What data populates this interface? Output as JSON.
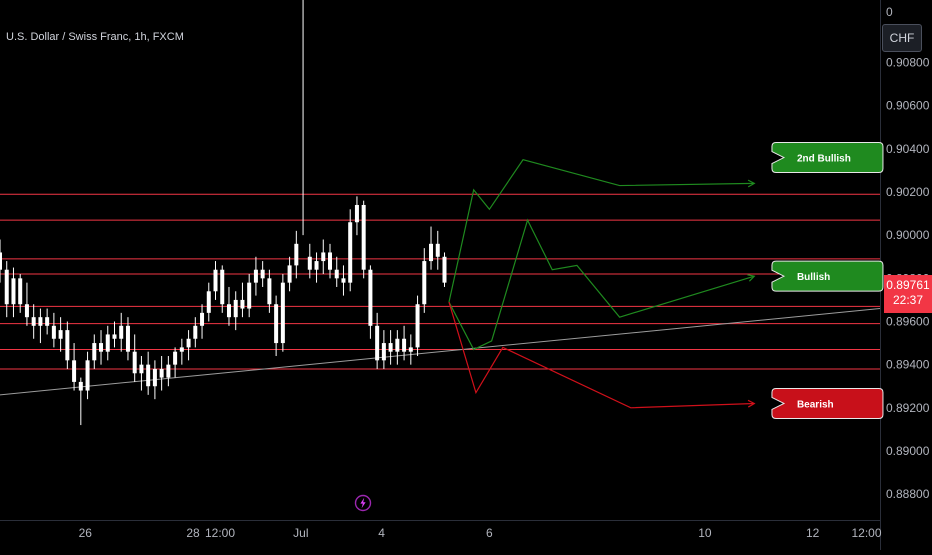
{
  "header": {
    "symbol_title": "U.S. Dollar / Swiss Franc, 1h, FXCM",
    "currency": "CHF"
  },
  "price_axis": {
    "top_label": "0",
    "current_price": "0.89761",
    "countdown": "22:37"
  },
  "icons": {
    "flash": "lightning-icon"
  },
  "colors": {
    "background": "#000000",
    "candle": "#ffffff",
    "level_line": "#f23645",
    "bullish": "#1f8a1f",
    "bearish": "#d0101a",
    "trendline": "#9c9c9c"
  },
  "chart_data": {
    "type": "candlestick",
    "title": "U.S. Dollar / Swiss Franc, 1h, FXCM",
    "y_axis": {
      "position": "right",
      "ticks": [
        0.888,
        0.89,
        0.892,
        0.894,
        0.896,
        0.898,
        0.9,
        0.902,
        0.904,
        0.906,
        0.908
      ],
      "tick_labels": [
        "0.88800",
        "0.89000",
        "0.89200",
        "0.89400",
        "0.89600",
        "0.89800",
        "0.90000",
        "0.90200",
        "0.90400",
        "0.90600",
        "0.90800"
      ],
      "range": [
        0.8868,
        0.9109
      ]
    },
    "x_axis": {
      "tick_labels": [
        "26",
        "28",
        "12:00",
        "Jul",
        "4",
        "6",
        "10",
        "12",
        "12:00"
      ],
      "tick_times": [
        0,
        48,
        60,
        96,
        132,
        180,
        276,
        324,
        348
      ],
      "range": [
        -38,
        354
      ]
    },
    "grid": false,
    "current_price": 0.89761,
    "horizontal_levels": [
      0.9019,
      0.9007,
      0.8989,
      0.8982,
      0.8967,
      0.8959,
      0.8947,
      0.8938
    ],
    "trendline": {
      "start": [
        -38,
        0.8926
      ],
      "end": [
        354,
        0.8966
      ]
    },
    "candles": [
      {
        "t": -38,
        "o": 0.8992,
        "h": 0.8998,
        "l": 0.8978,
        "c": 0.8984
      },
      {
        "t": -35,
        "o": 0.8984,
        "h": 0.8988,
        "l": 0.8962,
        "c": 0.8968
      },
      {
        "t": -32,
        "o": 0.8968,
        "h": 0.8985,
        "l": 0.8962,
        "c": 0.898
      },
      {
        "t": -29,
        "o": 0.898,
        "h": 0.8982,
        "l": 0.8964,
        "c": 0.8968
      },
      {
        "t": -26,
        "o": 0.8968,
        "h": 0.8978,
        "l": 0.8958,
        "c": 0.8962
      },
      {
        "t": -23,
        "o": 0.8962,
        "h": 0.8968,
        "l": 0.8952,
        "c": 0.8958
      },
      {
        "t": -20,
        "o": 0.8958,
        "h": 0.8966,
        "l": 0.895,
        "c": 0.8962
      },
      {
        "t": -17,
        "o": 0.8962,
        "h": 0.8966,
        "l": 0.8954,
        "c": 0.8958
      },
      {
        "t": -14,
        "o": 0.8958,
        "h": 0.8964,
        "l": 0.8948,
        "c": 0.8952
      },
      {
        "t": -11,
        "o": 0.8952,
        "h": 0.8962,
        "l": 0.8946,
        "c": 0.8956
      },
      {
        "t": -8,
        "o": 0.8956,
        "h": 0.896,
        "l": 0.8938,
        "c": 0.8942
      },
      {
        "t": -5,
        "o": 0.8942,
        "h": 0.895,
        "l": 0.8928,
        "c": 0.8932
      },
      {
        "t": -2,
        "o": 0.8932,
        "h": 0.8934,
        "l": 0.8912,
        "c": 0.8928
      },
      {
        "t": 1,
        "o": 0.8928,
        "h": 0.8946,
        "l": 0.8924,
        "c": 0.8942
      },
      {
        "t": 4,
        "o": 0.8942,
        "h": 0.8954,
        "l": 0.8938,
        "c": 0.895
      },
      {
        "t": 7,
        "o": 0.895,
        "h": 0.8956,
        "l": 0.894,
        "c": 0.8946
      },
      {
        "t": 10,
        "o": 0.8946,
        "h": 0.8958,
        "l": 0.8942,
        "c": 0.8954
      },
      {
        "t": 13,
        "o": 0.8954,
        "h": 0.896,
        "l": 0.8948,
        "c": 0.8952
      },
      {
        "t": 16,
        "o": 0.8952,
        "h": 0.8964,
        "l": 0.8946,
        "c": 0.8958
      },
      {
        "t": 19,
        "o": 0.8958,
        "h": 0.8962,
        "l": 0.8942,
        "c": 0.8946
      },
      {
        "t": 22,
        "o": 0.8946,
        "h": 0.8954,
        "l": 0.8932,
        "c": 0.8936
      },
      {
        "t": 25,
        "o": 0.8936,
        "h": 0.8944,
        "l": 0.8928,
        "c": 0.894
      },
      {
        "t": 28,
        "o": 0.894,
        "h": 0.8946,
        "l": 0.8926,
        "c": 0.893
      },
      {
        "t": 31,
        "o": 0.893,
        "h": 0.8942,
        "l": 0.8924,
        "c": 0.8938
      },
      {
        "t": 34,
        "o": 0.8938,
        "h": 0.8944,
        "l": 0.8928,
        "c": 0.8934
      },
      {
        "t": 37,
        "o": 0.8934,
        "h": 0.8944,
        "l": 0.893,
        "c": 0.894
      },
      {
        "t": 40,
        "o": 0.894,
        "h": 0.8948,
        "l": 0.8934,
        "c": 0.8946
      },
      {
        "t": 43,
        "o": 0.8946,
        "h": 0.8952,
        "l": 0.894,
        "c": 0.8948
      },
      {
        "t": 46,
        "o": 0.8948,
        "h": 0.8956,
        "l": 0.8942,
        "c": 0.8952
      },
      {
        "t": 49,
        "o": 0.8952,
        "h": 0.8962,
        "l": 0.8948,
        "c": 0.8958
      },
      {
        "t": 52,
        "o": 0.8958,
        "h": 0.8968,
        "l": 0.8952,
        "c": 0.8964
      },
      {
        "t": 55,
        "o": 0.8964,
        "h": 0.8978,
        "l": 0.896,
        "c": 0.8974
      },
      {
        "t": 58,
        "o": 0.8974,
        "h": 0.8988,
        "l": 0.897,
        "c": 0.8984
      },
      {
        "t": 61,
        "o": 0.8984,
        "h": 0.8986,
        "l": 0.8964,
        "c": 0.8968
      },
      {
        "t": 64,
        "o": 0.8968,
        "h": 0.8976,
        "l": 0.8958,
        "c": 0.8962
      },
      {
        "t": 67,
        "o": 0.8962,
        "h": 0.8974,
        "l": 0.8956,
        "c": 0.897
      },
      {
        "t": 70,
        "o": 0.897,
        "h": 0.8978,
        "l": 0.8962,
        "c": 0.8966
      },
      {
        "t": 73,
        "o": 0.8966,
        "h": 0.8982,
        "l": 0.8962,
        "c": 0.8978
      },
      {
        "t": 76,
        "o": 0.8978,
        "h": 0.899,
        "l": 0.8972,
        "c": 0.8984
      },
      {
        "t": 79,
        "o": 0.8984,
        "h": 0.8988,
        "l": 0.8976,
        "c": 0.898
      },
      {
        "t": 82,
        "o": 0.898,
        "h": 0.8984,
        "l": 0.8964,
        "c": 0.8968
      },
      {
        "t": 85,
        "o": 0.8968,
        "h": 0.8972,
        "l": 0.8944,
        "c": 0.895
      },
      {
        "t": 88,
        "o": 0.895,
        "h": 0.8982,
        "l": 0.8946,
        "c": 0.8978
      },
      {
        "t": 91,
        "o": 0.8978,
        "h": 0.899,
        "l": 0.8974,
        "c": 0.8986
      },
      {
        "t": 94,
        "o": 0.8986,
        "h": 0.9002,
        "l": 0.898,
        "c": 0.8996
      },
      {
        "t": 97,
        "o": 0.8996,
        "h": 0.9
      },
      {
        "t": 100,
        "o": 0.899,
        "h": 0.8996,
        "l": 0.898,
        "c": 0.8984
      },
      {
        "t": 103,
        "o": 0.8984,
        "h": 0.8992,
        "l": 0.8978,
        "c": 0.8988
      },
      {
        "t": 106,
        "o": 0.8988,
        "h": 0.8998,
        "l": 0.8982,
        "c": 0.8992
      },
      {
        "t": 109,
        "o": 0.8992,
        "h": 0.8996,
        "l": 0.898,
        "c": 0.8984
      },
      {
        "t": 112,
        "o": 0.8984,
        "h": 0.899,
        "l": 0.8976,
        "c": 0.898
      },
      {
        "t": 115,
        "o": 0.898,
        "h": 0.8986,
        "l": 0.8972,
        "c": 0.8978
      },
      {
        "t": 118,
        "o": 0.8978,
        "h": 0.9012,
        "l": 0.8974,
        "c": 0.9006
      },
      {
        "t": 121,
        "o": 0.9006,
        "h": 0.9018,
        "l": 0.9,
        "c": 0.9014
      },
      {
        "t": 124,
        "o": 0.9014,
        "h": 0.9016,
        "l": 0.898,
        "c": 0.8984
      },
      {
        "t": 127,
        "o": 0.8984,
        "h": 0.8986,
        "l": 0.8952,
        "c": 0.8958
      },
      {
        "t": 130,
        "o": 0.8958,
        "h": 0.8964,
        "l": 0.8938,
        "c": 0.8942
      },
      {
        "t": 133,
        "o": 0.8942,
        "h": 0.8956,
        "l": 0.8938,
        "c": 0.895
      },
      {
        "t": 136,
        "o": 0.895,
        "h": 0.8956,
        "l": 0.894,
        "c": 0.8946
      },
      {
        "t": 139,
        "o": 0.8946,
        "h": 0.8956,
        "l": 0.894,
        "c": 0.8952
      },
      {
        "t": 142,
        "o": 0.8952,
        "h": 0.8958,
        "l": 0.8942,
        "c": 0.8946
      },
      {
        "t": 145,
        "o": 0.8946,
        "h": 0.8954,
        "l": 0.894,
        "c": 0.8948
      },
      {
        "t": 148,
        "o": 0.8948,
        "h": 0.8972,
        "l": 0.8944,
        "c": 0.8968
      },
      {
        "t": 151,
        "o": 0.8968,
        "h": 0.8994,
        "l": 0.8964,
        "c": 0.8988
      },
      {
        "t": 154,
        "o": 0.8988,
        "h": 0.9004,
        "l": 0.8984,
        "c": 0.8996
      },
      {
        "t": 157,
        "o": 0.8996,
        "h": 0.9002,
        "l": 0.8984,
        "c": 0.899
      },
      {
        "t": 160,
        "o": 0.899,
        "h": 0.8992,
        "l": 0.8976,
        "c": 0.8978
      }
    ],
    "projections": [
      {
        "name": "2nd Bullish",
        "color": "#1f8a1f",
        "points": [
          [
            162,
            0.8969
          ],
          [
            173,
            0.9021
          ],
          [
            180,
            0.9012
          ],
          [
            195,
            0.9035
          ],
          [
            238,
            0.9023
          ],
          [
            298,
            0.9024
          ]
        ]
      },
      {
        "name": "Bullish",
        "color": "#1f8a1f",
        "points": [
          [
            162,
            0.8969
          ],
          [
            173,
            0.8947
          ],
          [
            181,
            0.8951
          ],
          [
            197,
            0.9007
          ],
          [
            208,
            0.8984
          ],
          [
            219,
            0.8986
          ],
          [
            238,
            0.8962
          ],
          [
            298,
            0.8981
          ]
        ]
      },
      {
        "name": "Bearish",
        "color": "#d0101a",
        "points": [
          [
            162,
            0.8969
          ],
          [
            174,
            0.8927
          ],
          [
            186,
            0.8948
          ],
          [
            243,
            0.892
          ],
          [
            298,
            0.8922
          ]
        ]
      }
    ],
    "annotations": [
      {
        "text": "2nd Bullish",
        "t": 313,
        "y": 0.9036,
        "color": "#1f8a1f"
      },
      {
        "text": "Bullish",
        "t": 313,
        "y": 0.8981,
        "color": "#1f8a1f"
      },
      {
        "text": "Bearish",
        "t": 313,
        "y": 0.8922,
        "color": "#c8101a"
      }
    ]
  }
}
